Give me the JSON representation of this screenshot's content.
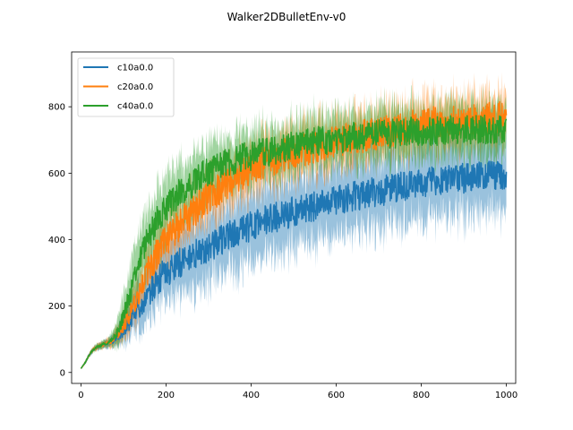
{
  "chart_data": {
    "type": "line",
    "title": "Walker2DBulletEnv-v0",
    "xlabel": "",
    "ylabel": "",
    "xlim": [
      -22,
      1022
    ],
    "ylim": [
      -33,
      965
    ],
    "xticks": [
      0,
      200,
      400,
      600,
      800,
      1000
    ],
    "yticks": [
      0,
      200,
      400,
      600,
      800
    ],
    "grid": false,
    "legend_position": "top-left",
    "band_opacity": 0.45,
    "series": [
      {
        "name": "c10a0.0",
        "color": "#1f77b4",
        "x": [
          0,
          10,
          20,
          30,
          40,
          50,
          60,
          70,
          80,
          90,
          100,
          110,
          120,
          130,
          140,
          150,
          160,
          170,
          180,
          190,
          200,
          220,
          240,
          260,
          280,
          300,
          320,
          340,
          360,
          380,
          400,
          420,
          440,
          460,
          480,
          500,
          520,
          540,
          560,
          580,
          600,
          620,
          640,
          660,
          680,
          700,
          720,
          740,
          760,
          780,
          800,
          820,
          840,
          860,
          880,
          900,
          920,
          940,
          960,
          980,
          1000
        ],
        "mean": [
          12,
          30,
          55,
          70,
          78,
          83,
          88,
          92,
          100,
          112,
          128,
          145,
          165,
          185,
          205,
          220,
          240,
          255,
          270,
          290,
          300,
          320,
          335,
          350,
          365,
          378,
          390,
          405,
          420,
          430,
          440,
          450,
          460,
          468,
          475,
          485,
          492,
          498,
          505,
          512,
          518,
          525,
          530,
          535,
          540,
          545,
          550,
          555,
          560,
          565,
          570,
          573,
          576,
          579,
          582,
          585,
          588,
          590,
          592,
          595,
          598
        ],
        "spread": [
          3,
          5,
          8,
          10,
          12,
          14,
          16,
          20,
          30,
          40,
          55,
          65,
          75,
          85,
          90,
          100,
          105,
          110,
          115,
          120,
          125,
          128,
          132,
          135,
          138,
          140,
          142,
          142,
          144,
          145,
          145,
          146,
          146,
          146,
          147,
          147,
          147,
          148,
          148,
          148,
          148,
          148,
          148,
          148,
          148,
          148,
          148,
          148,
          148,
          148,
          148,
          148,
          148,
          148,
          148,
          148,
          148,
          148,
          148,
          148,
          148
        ],
        "noise": [
          0,
          2,
          3,
          4,
          4,
          5,
          5,
          6,
          10,
          14,
          20,
          25,
          28,
          32,
          35,
          38,
          40,
          42,
          44,
          45,
          45,
          45,
          45,
          45,
          45,
          45,
          45,
          45,
          45,
          45,
          45,
          45,
          45,
          45,
          45,
          45,
          45,
          45,
          45,
          45,
          45,
          45,
          45,
          45,
          45,
          45,
          45,
          45,
          45,
          45,
          45,
          45,
          45,
          45,
          45,
          45,
          45,
          45,
          45,
          45,
          45
        ],
        "seed": 11
      },
      {
        "name": "c20a0.0",
        "color": "#ff7f0e",
        "x": [
          0,
          10,
          20,
          30,
          40,
          50,
          60,
          70,
          80,
          90,
          100,
          110,
          120,
          130,
          140,
          150,
          160,
          170,
          180,
          190,
          200,
          220,
          240,
          260,
          280,
          300,
          320,
          340,
          360,
          380,
          400,
          420,
          440,
          460,
          480,
          500,
          520,
          540,
          560,
          580,
          600,
          620,
          640,
          660,
          680,
          700,
          720,
          740,
          760,
          780,
          800,
          820,
          840,
          860,
          880,
          900,
          920,
          940,
          960,
          980,
          1000
        ],
        "mean": [
          12,
          30,
          55,
          70,
          78,
          83,
          88,
          93,
          105,
          120,
          140,
          165,
          195,
          225,
          255,
          285,
          310,
          335,
          360,
          385,
          400,
          430,
          455,
          480,
          505,
          525,
          545,
          565,
          582,
          598,
          612,
          625,
          636,
          645,
          655,
          663,
          670,
          677,
          683,
          690,
          695,
          700,
          705,
          710,
          715,
          720,
          725,
          730,
          735,
          740,
          745,
          750,
          752,
          755,
          757,
          760,
          762,
          763,
          765,
          767,
          770
        ],
        "spread": [
          3,
          5,
          8,
          10,
          12,
          14,
          16,
          20,
          30,
          40,
          55,
          65,
          70,
          75,
          80,
          82,
          85,
          88,
          90,
          92,
          95,
          95,
          95,
          95,
          95,
          95,
          95,
          95,
          95,
          95,
          95,
          95,
          95,
          95,
          95,
          95,
          95,
          95,
          95,
          95,
          95,
          95,
          95,
          95,
          95,
          95,
          95,
          95,
          95,
          95,
          95,
          95,
          95,
          95,
          95,
          95,
          95,
          95,
          95,
          95,
          95
        ],
        "noise": [
          0,
          2,
          3,
          4,
          4,
          5,
          5,
          6,
          10,
          14,
          22,
          28,
          32,
          36,
          40,
          42,
          44,
          45,
          46,
          48,
          50,
          50,
          50,
          50,
          50,
          50,
          50,
          50,
          50,
          50,
          50,
          50,
          50,
          50,
          50,
          50,
          50,
          50,
          50,
          50,
          50,
          50,
          50,
          50,
          50,
          50,
          50,
          50,
          50,
          50,
          50,
          50,
          50,
          50,
          50,
          50,
          50,
          50,
          50,
          50,
          50
        ],
        "seed": 23
      },
      {
        "name": "c40a0.0",
        "color": "#2ca02c",
        "x": [
          0,
          10,
          20,
          30,
          40,
          50,
          60,
          70,
          80,
          90,
          100,
          110,
          120,
          130,
          140,
          150,
          160,
          170,
          180,
          190,
          200,
          220,
          240,
          260,
          280,
          300,
          320,
          340,
          360,
          380,
          400,
          420,
          440,
          460,
          480,
          500,
          520,
          540,
          560,
          580,
          600,
          620,
          640,
          660,
          680,
          700,
          720,
          740,
          760,
          780,
          800,
          820,
          840,
          860,
          880,
          900,
          920,
          940,
          960,
          980,
          1000
        ],
        "mean": [
          12,
          30,
          55,
          70,
          78,
          83,
          88,
          95,
          110,
          135,
          170,
          210,
          260,
          305,
          345,
          380,
          410,
          435,
          460,
          480,
          495,
          525,
          550,
          570,
          588,
          602,
          615,
          627,
          637,
          645,
          653,
          660,
          666,
          672,
          677,
          682,
          687,
          692,
          696,
          700,
          703,
          706,
          709,
          712,
          714,
          716,
          718,
          720,
          722,
          724,
          725,
          726,
          727,
          728,
          729,
          730,
          731,
          731,
          732,
          732,
          733
        ],
        "spread": [
          3,
          5,
          8,
          10,
          12,
          14,
          16,
          22,
          40,
          60,
          80,
          95,
          105,
          110,
          115,
          118,
          120,
          120,
          120,
          118,
          115,
          110,
          108,
          106,
          104,
          102,
          100,
          100,
          100,
          100,
          100,
          100,
          100,
          100,
          100,
          100,
          100,
          100,
          100,
          100,
          100,
          100,
          100,
          100,
          100,
          100,
          100,
          100,
          100,
          100,
          100,
          100,
          100,
          100,
          100,
          100,
          100,
          100,
          100,
          100,
          100
        ],
        "noise": [
          0,
          2,
          3,
          4,
          4,
          5,
          5,
          6,
          12,
          18,
          25,
          30,
          34,
          38,
          40,
          42,
          44,
          45,
          45,
          45,
          45,
          45,
          45,
          45,
          45,
          45,
          45,
          45,
          45,
          45,
          45,
          45,
          45,
          45,
          45,
          45,
          45,
          45,
          45,
          45,
          45,
          45,
          45,
          45,
          45,
          45,
          45,
          45,
          45,
          45,
          45,
          45,
          45,
          45,
          45,
          45,
          45,
          45,
          45,
          45,
          45
        ],
        "seed": 37
      }
    ]
  }
}
